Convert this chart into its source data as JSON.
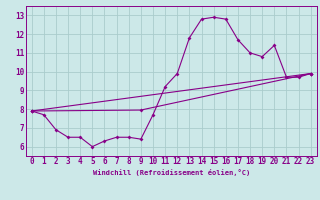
{
  "xlabel": "Windchill (Refroidissement éolien,°C)",
  "bg_color": "#cce8e8",
  "grid_color": "#aacccc",
  "line_color": "#880088",
  "xlim": [
    -0.5,
    23.5
  ],
  "ylim": [
    5.5,
    13.5
  ],
  "yticks": [
    6,
    7,
    8,
    9,
    10,
    11,
    12,
    13
  ],
  "xticks": [
    0,
    1,
    2,
    3,
    4,
    5,
    6,
    7,
    8,
    9,
    10,
    11,
    12,
    13,
    14,
    15,
    16,
    17,
    18,
    19,
    20,
    21,
    22,
    23
  ],
  "curve1_x": [
    0,
    1,
    2,
    3,
    4,
    5,
    6,
    7,
    8,
    9,
    10,
    11,
    12,
    13,
    14,
    15,
    16,
    17,
    18,
    19,
    20,
    21,
    22,
    23
  ],
  "curve1_y": [
    7.9,
    7.7,
    6.9,
    6.5,
    6.5,
    6.0,
    6.3,
    6.5,
    6.5,
    6.4,
    7.7,
    9.2,
    9.9,
    11.8,
    12.8,
    12.9,
    12.8,
    11.7,
    11.0,
    10.8,
    11.4,
    9.7,
    9.7,
    9.9
  ],
  "curve2_x": [
    0,
    23
  ],
  "curve2_y": [
    7.9,
    9.9
  ],
  "curve3_x": [
    0,
    9,
    23
  ],
  "curve3_y": [
    7.9,
    7.95,
    9.9
  ],
  "xlabel_fontsize": 5.0,
  "tick_fontsize": 5.5,
  "marker_size": 2.0,
  "line_width": 0.8
}
